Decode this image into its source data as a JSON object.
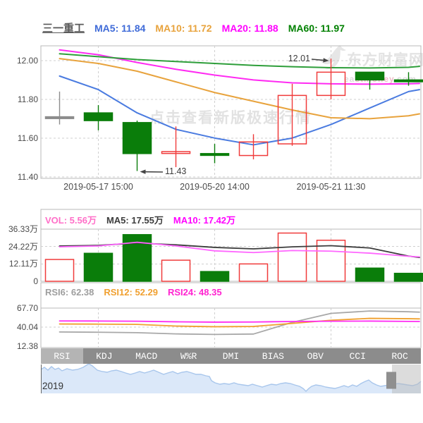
{
  "header": {
    "title": "三一重工",
    "legend": [
      {
        "label": "MA5: 11.84",
        "color": "#3f6bd8"
      },
      {
        "label": "MA10: 11.72",
        "color": "#e8a33d"
      },
      {
        "label": "MA20: 11.88",
        "color": "#ff00ff"
      },
      {
        "label": "MA60: 11.97",
        "color": "#008000"
      }
    ]
  },
  "watermark": {
    "center_text": "点击查看新版极速行情",
    "logo_cn": "东方财富网",
    "logo_en_pre": "ea",
    "logo_en_mid": "stmoney",
    "logo_en_post": ".com"
  },
  "volume_legend": [
    {
      "label": "VOL: 5.56万",
      "color": "#ff6fc8"
    },
    {
      "label": "MA5: 17.55万",
      "color": "#3c3c3c"
    },
    {
      "label": "MA10: 17.42万",
      "color": "#ff00ff"
    }
  ],
  "rsi_legend": [
    {
      "label": "RSI6: 62.38",
      "color": "#9e9e9e"
    },
    {
      "label": "RSI12: 52.29",
      "color": "#f0a030"
    },
    {
      "label": "RSI24: 48.35",
      "color": "#ff22d0"
    }
  ],
  "tabs": {
    "items": [
      "RSI",
      "KDJ",
      "MACD",
      "W%R",
      "DMI",
      "BIAS",
      "OBV",
      "CCI",
      "ROC"
    ],
    "active": "RSI"
  },
  "navigator_label": "2019",
  "chart_data": {
    "type": "candlestick",
    "title": "三一重工",
    "colors": {
      "up": "#f03b3b",
      "down": "#0a7d0a",
      "flat": "#8c8c8c"
    },
    "x_axis": {
      "tick_labels": [
        {
          "text": "2019-05-17 15:00",
          "bar_index": 1
        },
        {
          "text": "2019-05-20 14:00",
          "bar_index": 4
        },
        {
          "text": "2019-05-21 11:30",
          "bar_index": 7
        }
      ]
    },
    "price_panel": {
      "ylim": [
        11.392,
        12.076
      ],
      "yticks": [
        {
          "label": "12.00",
          "value": 12.0
        },
        {
          "label": "11.80",
          "value": 11.8
        },
        {
          "label": "11.60",
          "value": 11.6
        },
        {
          "label": "11.40",
          "value": 11.4
        }
      ],
      "candles": [
        {
          "open": 11.71,
          "high": 11.84,
          "low": 11.67,
          "close": 11.71,
          "dir": "flat"
        },
        {
          "open": 11.73,
          "high": 11.77,
          "low": 11.64,
          "close": 11.69,
          "dir": "down"
        },
        {
          "open": 11.68,
          "high": 11.69,
          "low": 11.43,
          "close": 11.52,
          "dir": "down"
        },
        {
          "open": 11.53,
          "high": 11.66,
          "low": 11.45,
          "close": 11.53,
          "dir": "up"
        },
        {
          "open": 11.52,
          "high": 11.57,
          "low": 11.47,
          "close": 11.52,
          "dir": "down"
        },
        {
          "open": 11.51,
          "high": 11.62,
          "low": 11.49,
          "close": 11.58,
          "dir": "up"
        },
        {
          "open": 11.57,
          "high": 11.88,
          "low": 11.56,
          "close": 11.82,
          "dir": "up"
        },
        {
          "open": 11.82,
          "high": 12.01,
          "low": 11.8,
          "close": 11.94,
          "dir": "up"
        },
        {
          "open": 11.94,
          "high": 11.94,
          "low": 11.85,
          "close": 11.9,
          "dir": "down"
        },
        {
          "open": 11.9,
          "high": 11.94,
          "low": 11.87,
          "close": 11.9,
          "dir": "down"
        }
      ],
      "ma_series": [
        {
          "name": "MA5",
          "color": "#4a7be0",
          "values": [
            11.92,
            11.85,
            11.73,
            11.645,
            11.6,
            11.565,
            11.6,
            11.67,
            11.755,
            11.84,
            11.85
          ]
        },
        {
          "name": "MA10",
          "color": "#e8a33d",
          "values": [
            12.01,
            11.985,
            11.945,
            11.89,
            11.835,
            11.79,
            11.745,
            11.705,
            11.7,
            11.715,
            11.725
          ]
        },
        {
          "name": "MA20",
          "color": "#ff2bf2",
          "values": [
            12.055,
            12.03,
            11.99,
            11.955,
            11.925,
            11.9,
            11.885,
            11.88,
            11.878,
            11.88,
            11.882
          ]
        },
        {
          "name": "MA60",
          "color": "#2e9e3a",
          "values": [
            12.035,
            12.02,
            12.005,
            11.995,
            11.985,
            11.975,
            11.968,
            11.963,
            11.962,
            11.965,
            11.97
          ]
        }
      ],
      "annotations": [
        {
          "text": "12.01",
          "bar_index": 7,
          "anchor": "high"
        },
        {
          "text": "11.43",
          "bar_index": 2,
          "anchor": "low"
        }
      ]
    },
    "volume_panel": {
      "unit": "万",
      "yticks": [
        {
          "label": "36.33万",
          "value": 36.33
        },
        {
          "label": "24.22万",
          "value": 24.22
        },
        {
          "label": "12.11万",
          "value": 12.11
        },
        {
          "label": "0",
          "value": 0
        }
      ],
      "bars": [
        15.2,
        19.5,
        32.5,
        14.7,
        6.8,
        12.1,
        33.6,
        28.6,
        9.2,
        5.56
      ],
      "bar_dirs": [
        "up",
        "down",
        "down",
        "up",
        "down",
        "up",
        "up",
        "up",
        "down",
        "down"
      ],
      "ma_series": [
        {
          "name": "MA5",
          "color": "#3c3c3c",
          "values": [
            24.6,
            25.0,
            26.6,
            25.4,
            23.6,
            22.6,
            24.0,
            24.8,
            23.2,
            17.55,
            16.6
          ]
        },
        {
          "name": "MA10",
          "color": "#ff66ff",
          "values": [
            24.0,
            24.6,
            27.2,
            24.6,
            21.2,
            20.0,
            21.4,
            21.0,
            19.6,
            17.42,
            17.0
          ]
        }
      ]
    },
    "rsi_panel": {
      "yticks": [
        {
          "label": "67.70",
          "value": 67.7
        },
        {
          "label": "40.04",
          "value": 40.04
        },
        {
          "label": "12.38",
          "value": 12.38
        }
      ],
      "series": [
        {
          "name": "RSI6",
          "color": "#a8a8a8",
          "values": [
            33.0,
            32.6,
            32.0,
            30.2,
            29.4,
            30.0,
            47.0,
            60.0,
            63.5,
            62.38,
            61.8
          ]
        },
        {
          "name": "RSI12",
          "color": "#f0a030",
          "values": [
            44.6,
            44.4,
            44.0,
            41.6,
            40.6,
            41.0,
            45.5,
            50.0,
            52.8,
            52.29,
            52.0
          ]
        },
        {
          "name": "RSI24",
          "color": "#ff2bf2",
          "values": [
            49.0,
            48.9,
            48.6,
            47.8,
            47.3,
            47.5,
            48.2,
            48.6,
            48.8,
            48.35,
            48.2
          ]
        }
      ]
    },
    "navigator": {
      "points": [
        [
          58,
          524
        ],
        [
          63,
          521
        ],
        [
          68,
          525
        ],
        [
          73,
          520
        ],
        [
          78,
          524
        ],
        [
          83,
          522
        ],
        [
          88,
          526
        ],
        [
          95,
          523
        ],
        [
          103,
          525
        ],
        [
          110,
          524
        ],
        [
          118,
          521
        ],
        [
          126,
          516
        ],
        [
          131,
          519
        ],
        [
          138,
          525
        ],
        [
          145,
          527
        ],
        [
          152,
          528
        ],
        [
          158,
          526
        ],
        [
          165,
          525
        ],
        [
          172,
          527
        ],
        [
          178,
          529
        ],
        [
          185,
          531
        ],
        [
          192,
          529
        ],
        [
          198,
          527
        ],
        [
          205,
          529
        ],
        [
          212,
          527
        ],
        [
          218,
          525
        ],
        [
          225,
          528
        ],
        [
          232,
          531
        ],
        [
          238,
          529
        ],
        [
          245,
          527
        ],
        [
          252,
          530
        ],
        [
          258,
          528
        ],
        [
          265,
          527
        ],
        [
          272,
          529
        ],
        [
          278,
          531
        ],
        [
          285,
          531
        ],
        [
          292,
          533
        ],
        [
          297,
          534
        ],
        [
          300,
          540
        ],
        [
          305,
          543
        ],
        [
          312,
          545
        ],
        [
          318,
          544
        ],
        [
          325,
          545
        ],
        [
          332,
          543
        ],
        [
          338,
          545
        ],
        [
          345,
          546
        ],
        [
          352,
          547
        ],
        [
          358,
          545
        ],
        [
          365,
          547
        ],
        [
          372,
          549
        ],
        [
          378,
          547
        ],
        [
          385,
          545
        ],
        [
          392,
          546
        ],
        [
          398,
          544
        ],
        [
          405,
          543
        ],
        [
          412,
          544
        ],
        [
          418,
          546
        ],
        [
          425,
          548
        ],
        [
          430,
          551
        ],
        [
          434,
          555
        ],
        [
          438,
          551
        ],
        [
          442,
          548
        ],
        [
          448,
          546
        ],
        [
          455,
          547
        ],
        [
          462,
          549
        ],
        [
          468,
          550
        ],
        [
          475,
          551
        ],
        [
          482,
          549
        ],
        [
          488,
          547
        ],
        [
          494,
          549
        ],
        [
          500,
          546
        ],
        [
          506,
          548
        ],
        [
          512,
          544
        ],
        [
          518,
          541
        ],
        [
          523,
          539
        ],
        [
          528,
          543
        ],
        [
          534,
          546
        ],
        [
          540,
          548
        ],
        [
          546,
          547
        ],
        [
          552,
          546
        ],
        [
          558,
          545
        ],
        [
          565,
          544
        ],
        [
          572,
          545
        ],
        [
          578,
          546
        ],
        [
          585,
          547
        ],
        [
          592,
          545
        ],
        [
          597,
          541
        ]
      ],
      "selection": {
        "x1": 556,
        "x2": 597
      },
      "handle_x": 548
    }
  }
}
